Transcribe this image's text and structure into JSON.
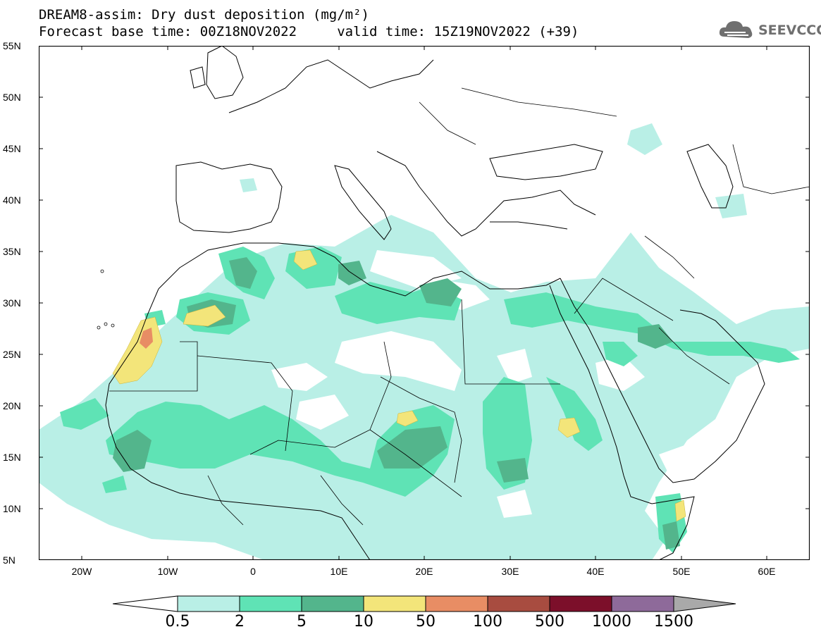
{
  "header": {
    "title_line1": "DREAM8-assim: Dry dust deposition (mg/m²)",
    "title_line2": "Forecast base time: 00Z18NOV2022     valid time: 15Z19NOV2022 (+39)"
  },
  "logo": {
    "text": "SEEVCCC",
    "icon": "cloud-icon",
    "color": "#6f6f6f"
  },
  "map": {
    "projection": "lat-lon",
    "lon_range": [
      -25,
      65
    ],
    "lat_range": [
      5,
      55
    ],
    "lat_ticks": [
      "55N",
      "50N",
      "45N",
      "40N",
      "35N",
      "30N",
      "25N",
      "20N",
      "15N",
      "10N",
      "5N"
    ],
    "lon_ticks": [
      "20W",
      "10W",
      "0",
      "10E",
      "20E",
      "30E",
      "40E",
      "50E",
      "60E"
    ]
  },
  "legend": {
    "levels": [
      "0.5",
      "2",
      "5",
      "10",
      "50",
      "100",
      "500",
      "1000",
      "1500"
    ],
    "colors": [
      "#ffffff",
      "#b9efe6",
      "#5fe3b5",
      "#53b58c",
      "#f3e57a",
      "#e88d64",
      "#a84c40",
      "#7c0f2a",
      "#8e6a9a",
      "#a9a9a9"
    ]
  }
}
